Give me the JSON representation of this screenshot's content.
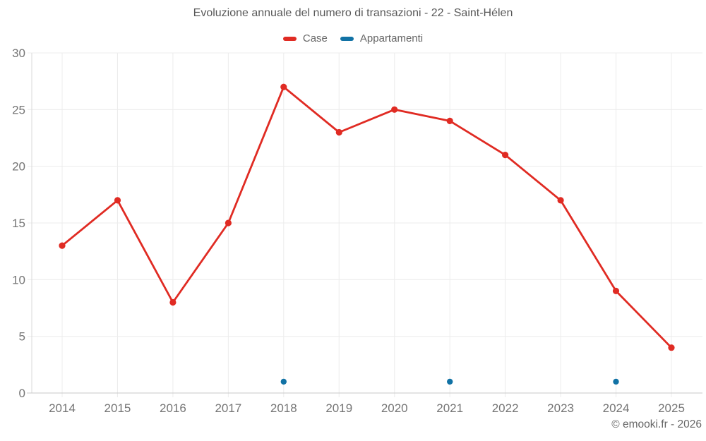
{
  "chart_data": {
    "type": "line",
    "title": "Evoluzione annuale del numero di transazioni - 22 - Saint-Hélen",
    "x": [
      "2014",
      "2015",
      "2016",
      "2017",
      "2018",
      "2019",
      "2020",
      "2021",
      "2022",
      "2023",
      "2024",
      "2025"
    ],
    "series": [
      {
        "name": "Case",
        "color": "#e02b23",
        "marker": "circle",
        "line": true,
        "values": [
          13,
          17,
          8,
          15,
          27,
          23,
          25,
          24,
          21,
          17,
          9,
          4
        ]
      },
      {
        "name": "Appartamenti",
        "color": "#1172a5",
        "marker": "circle",
        "line": false,
        "values": [
          null,
          null,
          null,
          null,
          1,
          null,
          null,
          1,
          null,
          null,
          1,
          null
        ]
      }
    ],
    "xlabel": "",
    "ylabel": "",
    "ylim": [
      0,
      30
    ],
    "yticks": [
      0,
      5,
      10,
      15,
      20,
      25,
      30
    ],
    "grid": true,
    "legend_position": "top",
    "credit": "© emooki.fr - 2026"
  },
  "colors": {
    "grid": "#ececec",
    "axis_left": "#d8d8d8",
    "axis_bottom": "#c8c8c8",
    "tick_text": "#757575"
  }
}
